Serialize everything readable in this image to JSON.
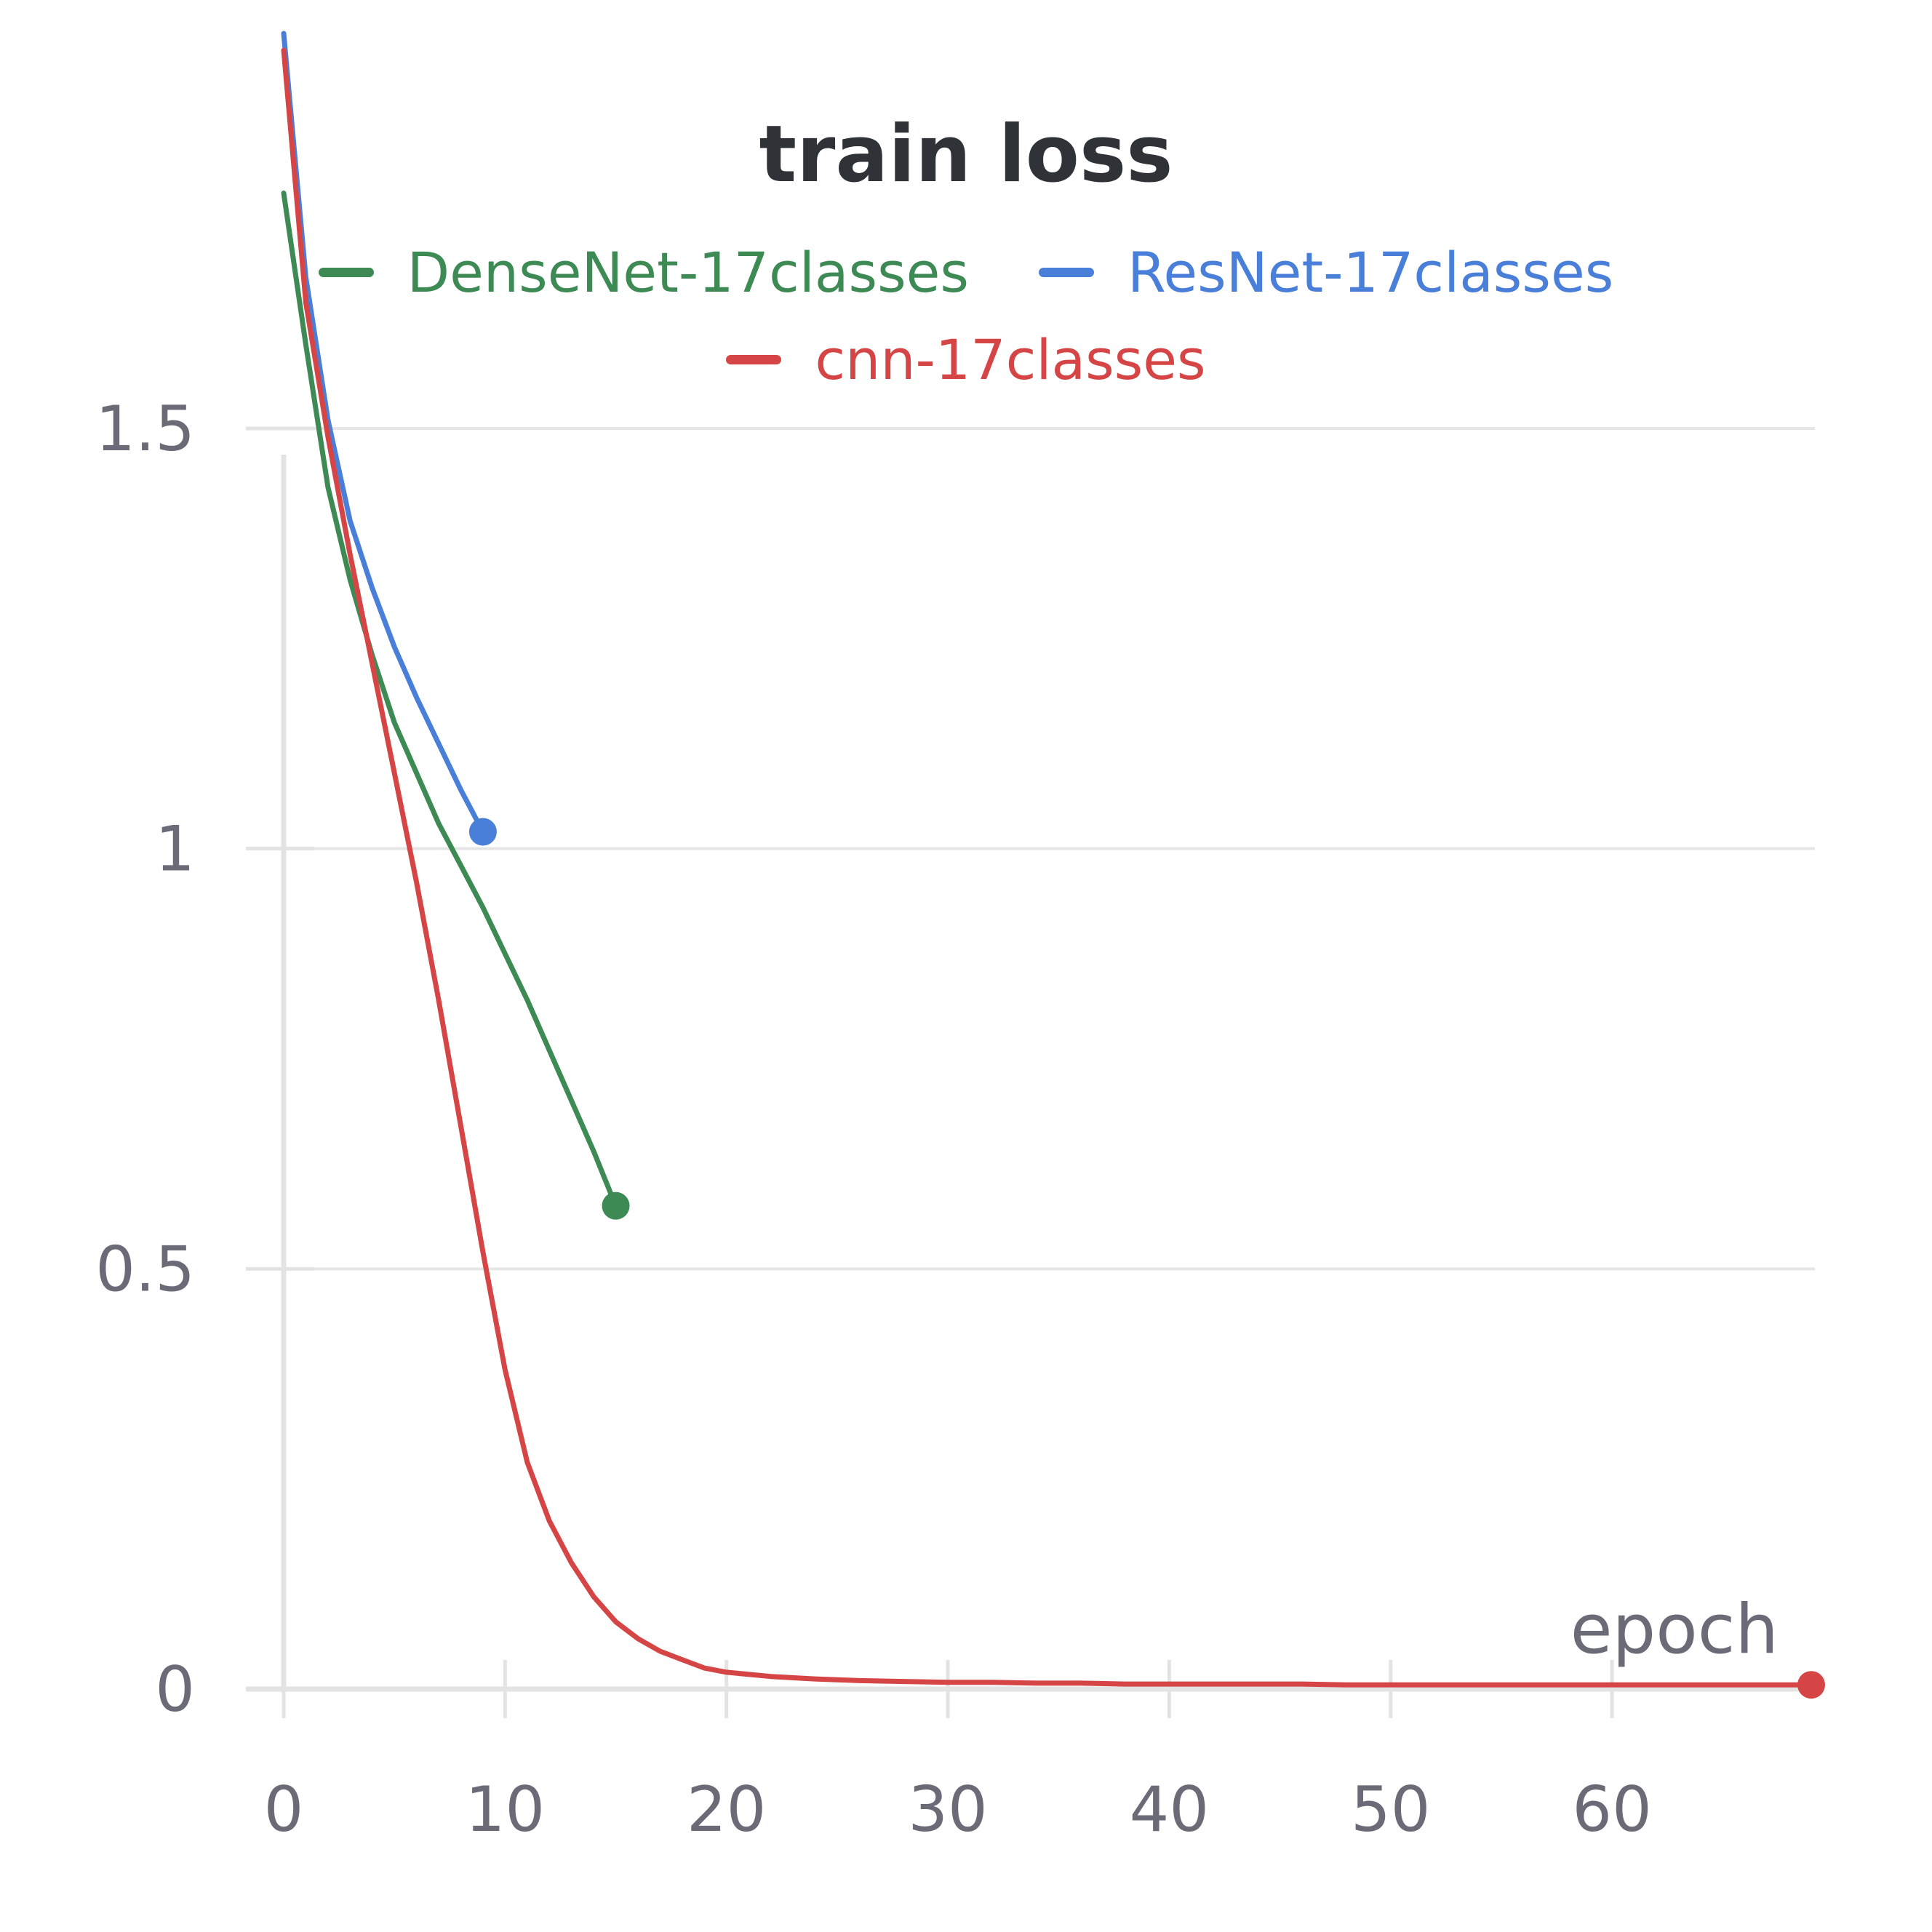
{
  "chart_data": {
    "type": "line",
    "title": "train loss",
    "xlabel": "epoch",
    "ylabel": "",
    "xlim": [
      0,
      69
    ],
    "ylim": [
      0,
      1.95
    ],
    "x_ticks": [
      "0",
      "10",
      "20",
      "30",
      "40",
      "50",
      "60"
    ],
    "y_ticks": [
      "0",
      "0.5",
      "1",
      "1.5"
    ],
    "grid": "horizontal",
    "legend_position": "top-center",
    "series": [
      {
        "name": "DenseNet-17classes",
        "color": "#3d8a55",
        "x": [
          0,
          1,
          2,
          3,
          4,
          5,
          6,
          7,
          8,
          9,
          10,
          11,
          12,
          13,
          14,
          15
        ],
        "y": [
          1.78,
          1.6,
          1.43,
          1.32,
          1.23,
          1.15,
          1.09,
          1.03,
          0.98,
          0.93,
          0.875,
          0.82,
          0.76,
          0.7,
          0.64,
          0.575
        ]
      },
      {
        "name": "ResNet-17classes",
        "color": "#4a7fd9",
        "x": [
          0,
          1,
          2,
          3,
          4,
          5,
          6,
          7,
          8,
          9
        ],
        "y": [
          1.97,
          1.68,
          1.51,
          1.39,
          1.31,
          1.24,
          1.18,
          1.125,
          1.07,
          1.02
        ]
      },
      {
        "name": "cnn-17classes",
        "color": "#d64545",
        "x": [
          0,
          1,
          2,
          3,
          4,
          5,
          6,
          7,
          8,
          9,
          10,
          11,
          12,
          13,
          14,
          15,
          16,
          17,
          18,
          19,
          20,
          22,
          24,
          26,
          28,
          30,
          32,
          34,
          36,
          38,
          40,
          42,
          44,
          46,
          48,
          50,
          52,
          54,
          56,
          58,
          60,
          62,
          64,
          66,
          69
        ],
        "y": [
          1.95,
          1.65,
          1.49,
          1.35,
          1.22,
          1.09,
          0.96,
          0.82,
          0.67,
          0.52,
          0.38,
          0.27,
          0.2,
          0.15,
          0.11,
          0.08,
          0.06,
          0.045,
          0.035,
          0.025,
          0.02,
          0.015,
          0.012,
          0.01,
          0.009,
          0.008,
          0.008,
          0.007,
          0.007,
          0.006,
          0.006,
          0.006,
          0.006,
          0.006,
          0.005,
          0.005,
          0.005,
          0.005,
          0.005,
          0.005,
          0.005,
          0.005,
          0.005,
          0.005,
          0.005
        ]
      }
    ]
  }
}
